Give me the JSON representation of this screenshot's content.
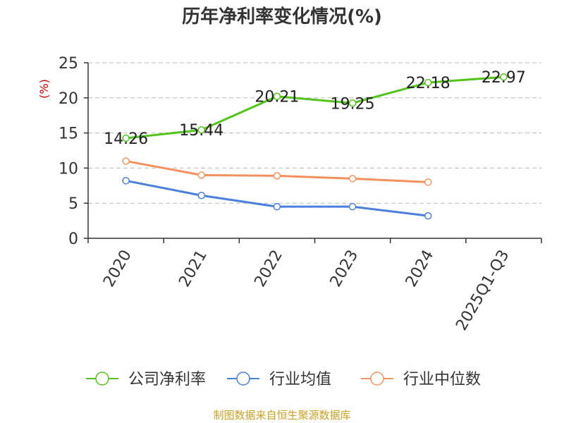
{
  "chart_data": {
    "type": "line",
    "title": "历年净利率变化情况(%)",
    "ylabel": "(%)",
    "categories": [
      "2020",
      "2021",
      "2022",
      "2023",
      "2024",
      "2025Q1-Q3"
    ],
    "ylim": [
      0,
      25
    ],
    "yticks": [
      0,
      5,
      10,
      15,
      20,
      25
    ],
    "grid": true,
    "legend_position": "bottom",
    "series": [
      {
        "name": "公司净利率",
        "color": "#52c41a",
        "values": [
          14.26,
          15.44,
          20.21,
          19.25,
          22.18,
          22.97
        ],
        "labels": [
          "14.26",
          "15.44",
          "20.21",
          "19.25",
          "22.18",
          "22.97"
        ]
      },
      {
        "name": "行业均值",
        "color": "#4a7fdc",
        "values": [
          8.2,
          6.1,
          4.5,
          4.5,
          3.2,
          null
        ]
      },
      {
        "name": "行业中位数",
        "color": "#f4915e",
        "values": [
          11.0,
          9.0,
          8.9,
          8.5,
          8.0,
          null
        ]
      }
    ]
  },
  "footer": {
    "source": "制图数据来自恒生聚源数据库"
  }
}
